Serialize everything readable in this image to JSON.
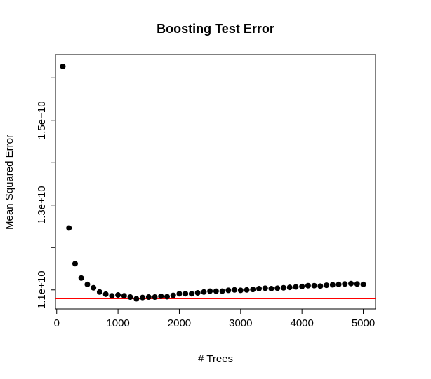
{
  "chart_data": {
    "type": "scatter",
    "title": "Boosting Test Error",
    "xlabel": "# Trees",
    "ylabel": "Mean Squared Error",
    "xlim": [
      -20,
      5200
    ],
    "ylim": [
      10550000000,
      16550000000
    ],
    "x_ticks": [
      0,
      1000,
      2000,
      3000,
      4000,
      5000
    ],
    "x_tick_labels": [
      "0",
      "1000",
      "2000",
      "3000",
      "4000",
      "5000"
    ],
    "y_ticks": [
      11000000000,
      12000000000,
      13000000000,
      14000000000,
      15000000000,
      16000000000
    ],
    "y_tick_labels": [
      "1.1e+10",
      "",
      "1.3e+10",
      "",
      "1.5e+10",
      ""
    ],
    "reference_line": {
      "y": 10790000000,
      "color": "#ff0000"
    },
    "grid": false,
    "point_color": "#000000",
    "series": [
      {
        "x": [
          100,
          200,
          300,
          400,
          500,
          600,
          700,
          800,
          900,
          1000,
          1100,
          1200,
          1300,
          1400,
          1500,
          1600,
          1700,
          1800,
          1900,
          2000,
          2100,
          2200,
          2300,
          2400,
          2500,
          2600,
          2700,
          2800,
          2900,
          3000,
          3100,
          3200,
          3300,
          3400,
          3500,
          3600,
          3700,
          3800,
          3900,
          4000,
          4100,
          4200,
          4300,
          4400,
          4500,
          4600,
          4700,
          4800,
          4900,
          5000
        ],
        "y": [
          16270000000,
          12460000000,
          11620000000,
          11280000000,
          11130000000,
          11050000000,
          10950000000,
          10900000000,
          10860000000,
          10880000000,
          10860000000,
          10830000000,
          10790000000,
          10820000000,
          10830000000,
          10830000000,
          10850000000,
          10840000000,
          10870000000,
          10910000000,
          10910000000,
          10910000000,
          10930000000,
          10950000000,
          10970000000,
          10970000000,
          10970000000,
          10990000000,
          11000000000,
          10990000000,
          11000000000,
          11010000000,
          11030000000,
          11040000000,
          11030000000,
          11040000000,
          11050000000,
          11060000000,
          11070000000,
          11080000000,
          11100000000,
          11100000000,
          11090000000,
          11110000000,
          11120000000,
          11130000000,
          11140000000,
          11150000000,
          11140000000,
          11130000000
        ]
      }
    ]
  }
}
